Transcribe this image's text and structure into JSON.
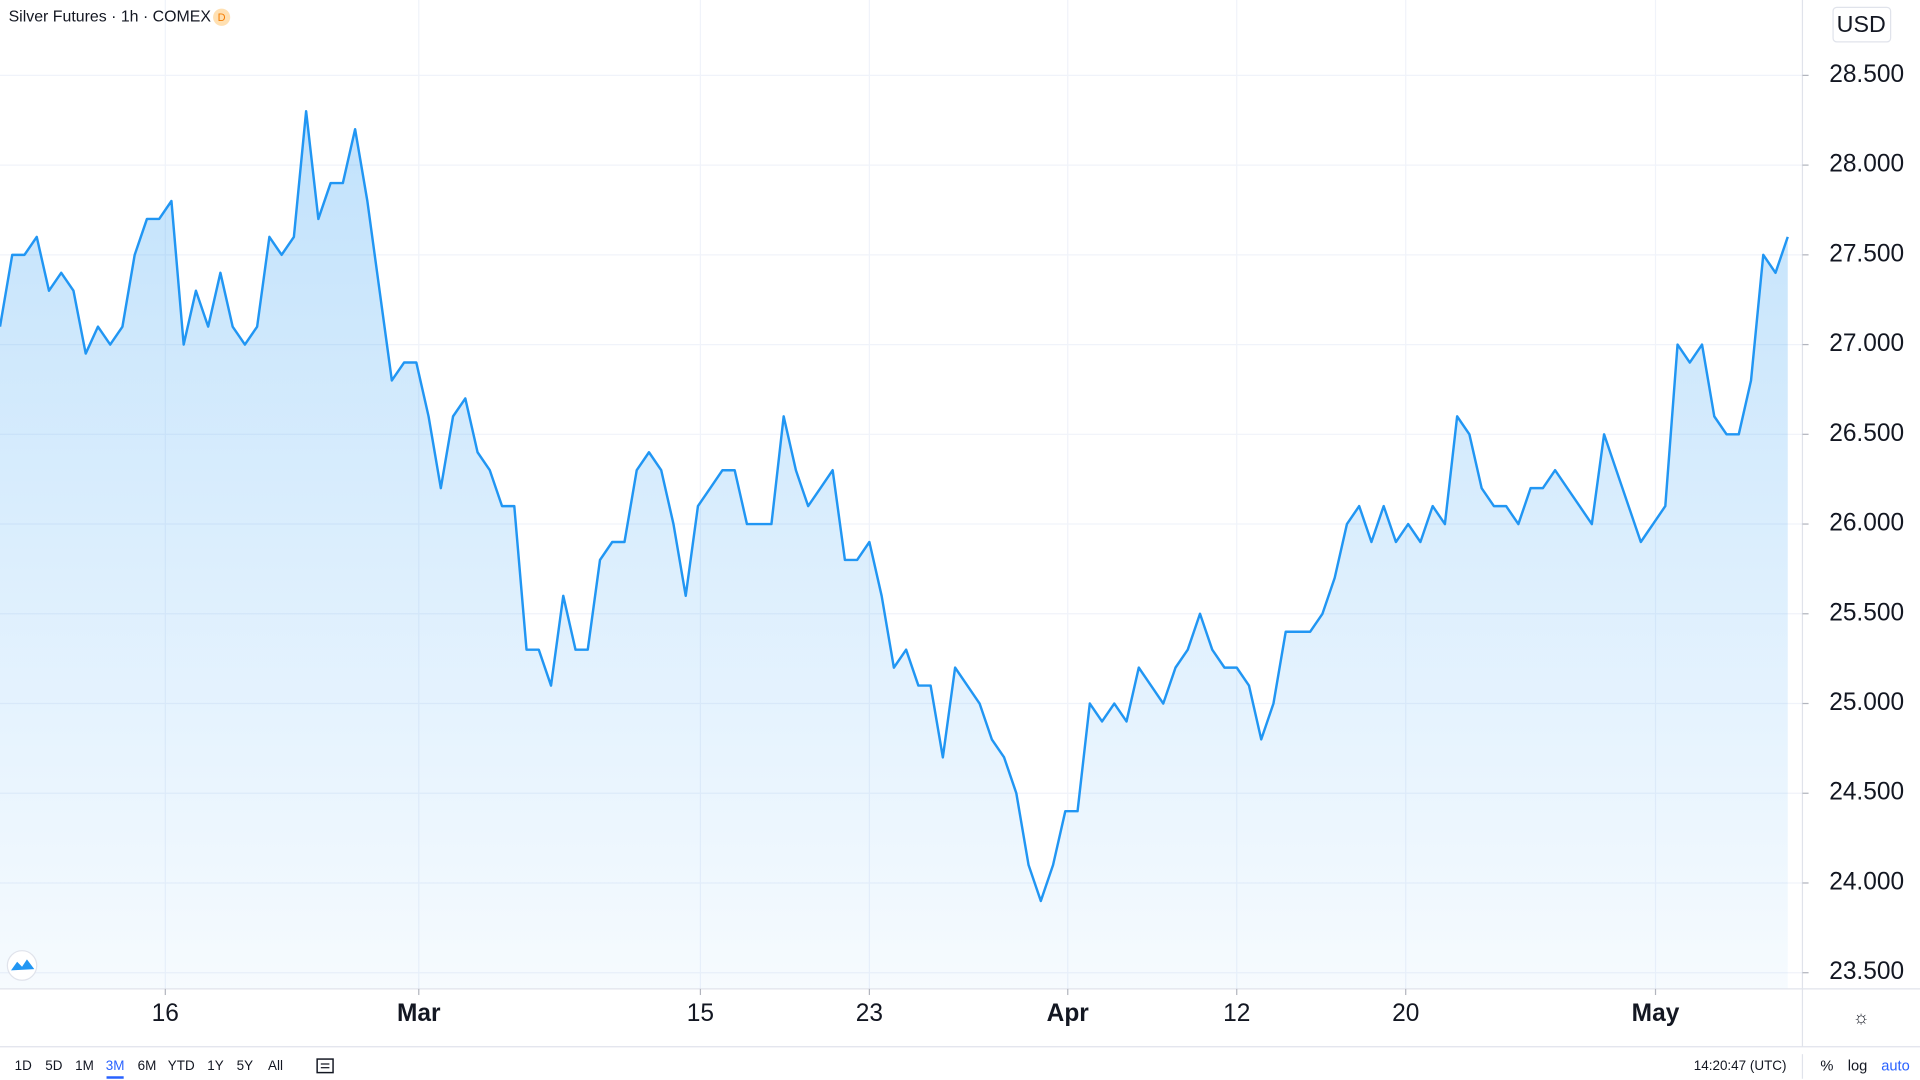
{
  "chart_data": {
    "type": "area",
    "title": "Silver Futures · 1h · COMEX",
    "badge": "D",
    "currency": "USD",
    "color": "#2196f3",
    "values": [
      27.1,
      27.5,
      27.5,
      27.6,
      27.3,
      27.4,
      27.3,
      26.95,
      27.1,
      27.0,
      27.1,
      27.5,
      27.7,
      27.7,
      27.8,
      27.0,
      27.3,
      27.1,
      27.4,
      27.1,
      27.0,
      27.1,
      27.6,
      27.5,
      27.6,
      28.3,
      27.7,
      27.9,
      27.9,
      28.2,
      27.8,
      27.3,
      26.8,
      26.9,
      26.9,
      26.6,
      26.2,
      26.6,
      26.7,
      26.4,
      26.3,
      26.1,
      26.1,
      25.3,
      25.3,
      25.1,
      25.6,
      25.3,
      25.3,
      25.8,
      25.9,
      25.9,
      26.3,
      26.4,
      26.3,
      26.0,
      25.6,
      26.1,
      26.2,
      26.3,
      26.3,
      26.0,
      26.0,
      26.0,
      26.6,
      26.3,
      26.1,
      26.2,
      26.3,
      25.8,
      25.8,
      25.9,
      25.6,
      25.2,
      25.3,
      25.1,
      25.1,
      24.7,
      25.2,
      25.1,
      25.0,
      24.8,
      24.7,
      24.5,
      24.1,
      23.9,
      24.1,
      24.4,
      24.4,
      25.0,
      24.9,
      25.0,
      24.9,
      25.2,
      25.1,
      25.0,
      25.2,
      25.3,
      25.5,
      25.3,
      25.2,
      25.2,
      25.1,
      24.8,
      25.0,
      25.4,
      25.4,
      25.4,
      25.5,
      25.7,
      26.0,
      26.1,
      25.9,
      26.1,
      25.9,
      26.0,
      25.9,
      26.1,
      26.0,
      26.6,
      26.5,
      26.2,
      26.1,
      26.1,
      26.0,
      26.2,
      26.2,
      26.3,
      26.2,
      26.1,
      26.0,
      26.5,
      26.3,
      26.1,
      25.9,
      26.0,
      26.1,
      27.0,
      26.9,
      27.0,
      26.6,
      26.5,
      26.5,
      26.8,
      27.5,
      27.4,
      27.6
    ],
    "xlim": [
      0,
      147.2
    ],
    "xticks": [
      {
        "value": 13.5,
        "label": "16"
      },
      {
        "value": 34.2,
        "label": "Mar"
      },
      {
        "value": 57.2,
        "label": "15"
      },
      {
        "value": 71.0,
        "label": "23"
      },
      {
        "value": 87.2,
        "label": "Apr"
      },
      {
        "value": 101.0,
        "label": "12"
      },
      {
        "value": 114.8,
        "label": "20"
      },
      {
        "value": 135.2,
        "label": "May"
      }
    ],
    "ylim": [
      23.41,
      28.92
    ],
    "yticks": [
      {
        "value": 23.5,
        "label": "23.500"
      },
      {
        "value": 24,
        "label": "24.000"
      },
      {
        "value": 24.5,
        "label": "24.500"
      },
      {
        "value": 25,
        "label": "25.000"
      },
      {
        "value": 25.5,
        "label": "25.500"
      },
      {
        "value": 26,
        "label": "26.000"
      },
      {
        "value": 26.5,
        "label": "26.500"
      },
      {
        "value": 27,
        "label": "27.000"
      },
      {
        "value": 27.5,
        "label": "27.500"
      },
      {
        "value": 28,
        "label": "28.000"
      },
      {
        "value": 28.5,
        "label": "28.500"
      }
    ],
    "grid": true
  },
  "toolbar": {
    "ranges": [
      "1D",
      "5D",
      "1M",
      "3M",
      "6M",
      "YTD",
      "1Y",
      "5Y",
      "All"
    ],
    "selected": 3,
    "time": "14:20:47 (UTC)",
    "options": [
      "%",
      "log",
      "auto"
    ]
  }
}
